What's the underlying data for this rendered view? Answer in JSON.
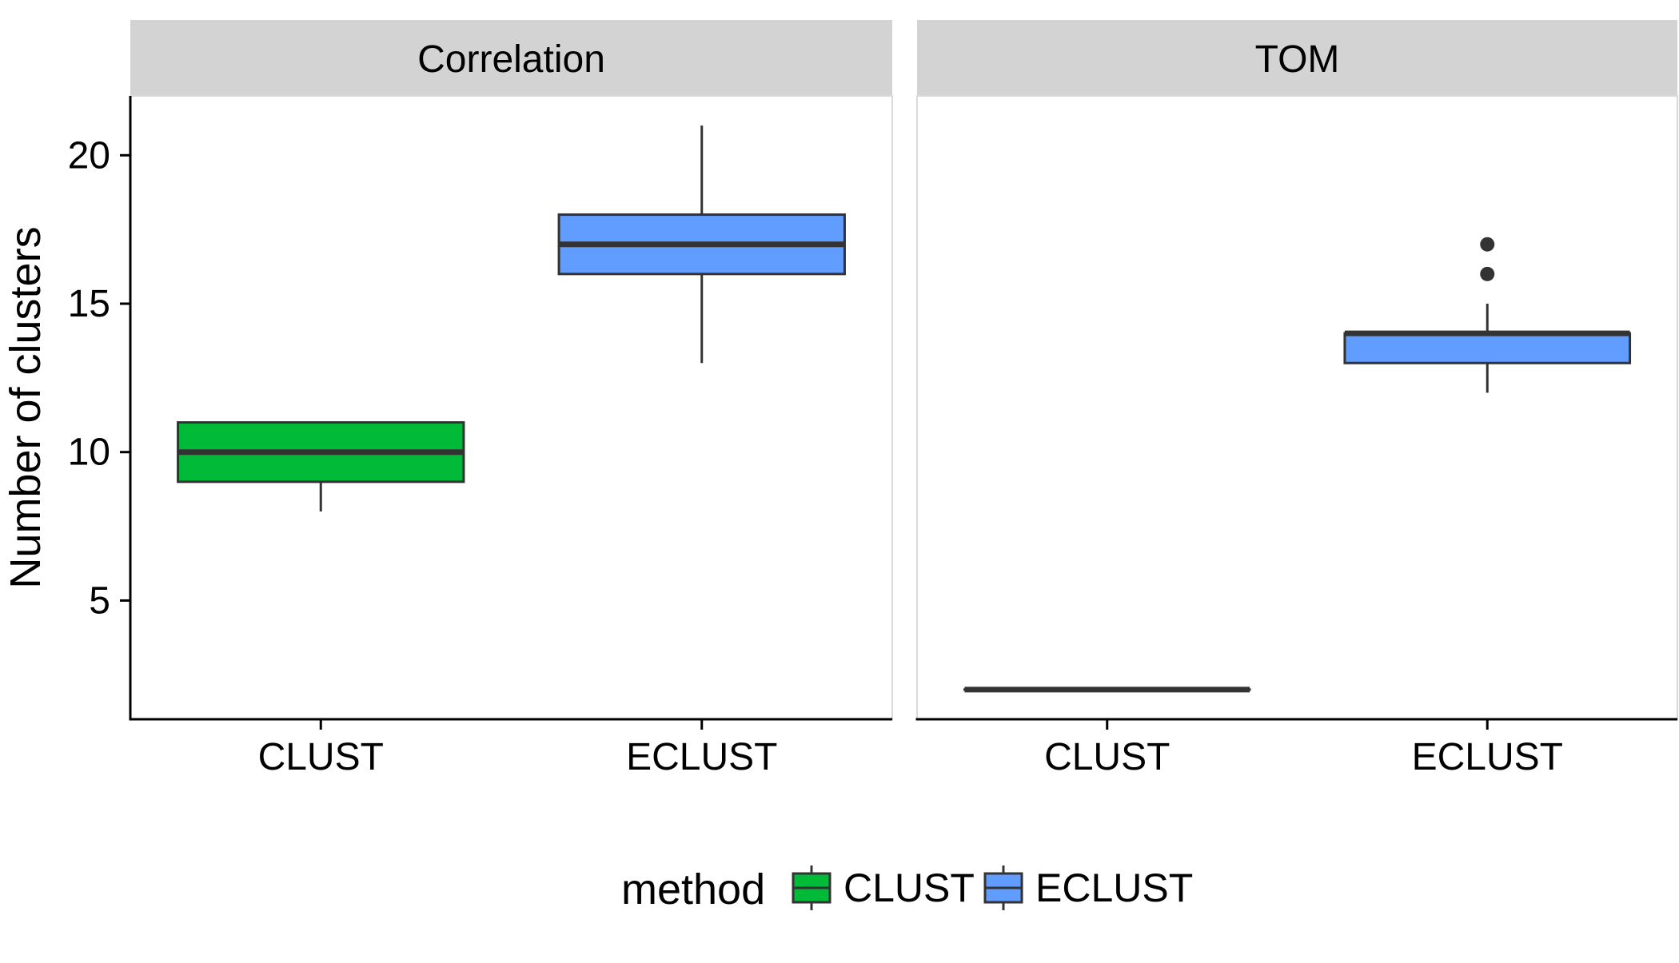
{
  "chart_data": {
    "type": "box",
    "ylabel": "Number of clusters",
    "xlabel": "",
    "ylim": [
      1,
      22
    ],
    "yticks": [
      5,
      10,
      15,
      20
    ],
    "categories": [
      "CLUST",
      "ECLUST"
    ],
    "facets": [
      {
        "label": "Correlation",
        "boxes": [
          {
            "category": "CLUST",
            "min": 8,
            "q1": 9,
            "median": 10,
            "q3": 11,
            "max": 11,
            "outliers": []
          },
          {
            "category": "ECLUST",
            "min": 13,
            "q1": 16,
            "median": 17,
            "q3": 18,
            "max": 21,
            "outliers": []
          }
        ]
      },
      {
        "label": "TOM",
        "boxes": [
          {
            "category": "CLUST",
            "min": 2,
            "q1": 2,
            "median": 2,
            "q3": 2,
            "max": 2,
            "outliers": []
          },
          {
            "category": "ECLUST",
            "min": 12,
            "q1": 13,
            "median": 14,
            "q3": 14,
            "max": 15,
            "outliers": [
              16,
              17
            ]
          }
        ]
      }
    ],
    "legend": {
      "title": "method",
      "position": "bottom",
      "items": [
        {
          "label": "CLUST",
          "color": "#00BA38"
        },
        {
          "label": "ECLUST",
          "color": "#619CFF"
        }
      ]
    },
    "colors": {
      "CLUST": "#00BA38",
      "ECLUST": "#619CFF",
      "strip_background": "#D3D3D3",
      "box_outline": "#333333"
    },
    "grid": false
  }
}
